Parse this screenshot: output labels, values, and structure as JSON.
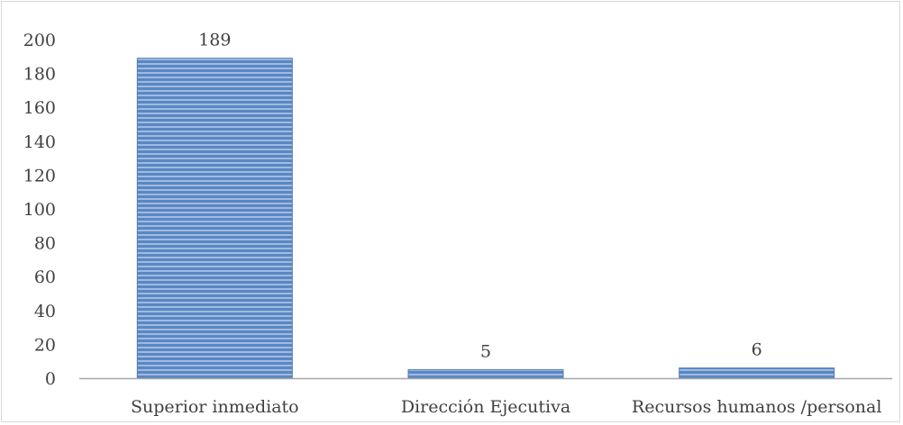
{
  "chart_data": {
    "type": "bar",
    "title": "",
    "xlabel": "",
    "ylabel": "",
    "categories": [
      "Superior inmediato",
      "Dirección Ejecutiva",
      "Recursos humanos /personal"
    ],
    "values": [
      189,
      5,
      6
    ],
    "data_labels": [
      "189",
      "5",
      "6"
    ],
    "ylim": [
      0,
      200
    ],
    "yticks": [
      0,
      20,
      40,
      60,
      80,
      100,
      120,
      140,
      160,
      180,
      200
    ],
    "ytick_labels": [
      "0",
      "20",
      "40",
      "60",
      "80",
      "100",
      "120",
      "140",
      "160",
      "180",
      "200"
    ],
    "grid": false,
    "legend": "none",
    "bar_color": "#5b87c2",
    "bar_stripe_color": "#9ebbe2",
    "axis_color": "#a6a6a6"
  }
}
